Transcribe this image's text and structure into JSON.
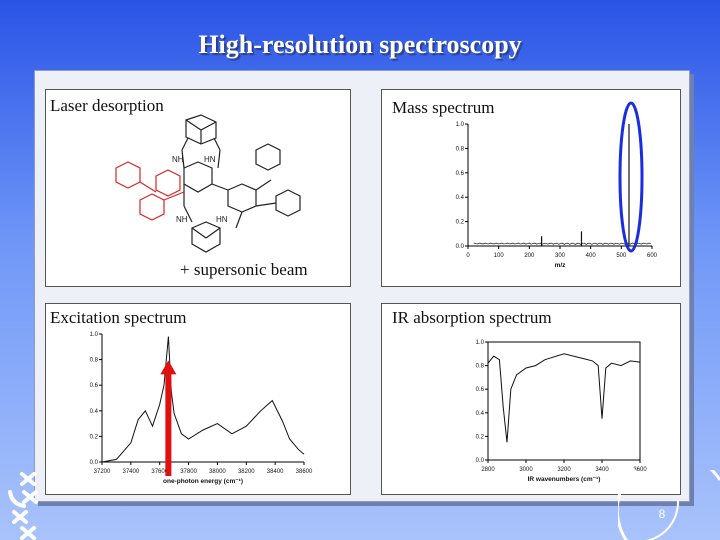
{
  "slide": {
    "title": "High-resolution spectroscopy",
    "page_number": "8"
  },
  "panels": {
    "laser": {
      "label": "Laser desorption",
      "beam_label": "+ supersonic beam"
    },
    "mass": {
      "label": "Mass spectrum"
    },
    "excitation": {
      "label": "Excitation spectrum"
    },
    "ir": {
      "label": "IR absorption spectrum"
    }
  },
  "colors": {
    "highlight_red": "#e01010",
    "highlight_blue": "#1a2de0"
  },
  "chart_data": [
    {
      "type": "line",
      "xlabel": "m/z",
      "ylabel": "",
      "xlim": [
        0,
        600
      ],
      "ylim": [
        0,
        1.0
      ],
      "x_ticks": [
        "0",
        "100",
        "200",
        "300",
        "400",
        "500",
        "600"
      ],
      "y_ticks": [
        "0.0",
        "0.2",
        "0.4",
        "0.6",
        "0.8",
        "1.0"
      ],
      "peaks": [
        {
          "x": 240,
          "y": 0.08
        },
        {
          "x": 370,
          "y": 0.12
        },
        {
          "x": 525,
          "y": 1.0
        }
      ]
    },
    {
      "type": "line",
      "xlabel": "one-photon energy (cm⁻¹)",
      "ylabel": "",
      "xlim": [
        37200,
        38600
      ],
      "ylim": [
        0,
        1.0
      ],
      "x_ticks": [
        "37200",
        "37400",
        "37600",
        "37800",
        "38000",
        "38200",
        "38400",
        "38600"
      ],
      "y_ticks": [
        "0.0",
        "0.2",
        "0.4",
        "0.6",
        "0.8",
        "1.0"
      ],
      "x": [
        37200,
        37300,
        37400,
        37450,
        37500,
        37550,
        37600,
        37630,
        37660,
        37680,
        37700,
        37750,
        37800,
        37900,
        38000,
        38100,
        38200,
        38300,
        38380,
        38450,
        38500,
        38560,
        38600
      ],
      "y": [
        0.0,
        0.02,
        0.15,
        0.33,
        0.4,
        0.28,
        0.45,
        0.6,
        0.98,
        0.55,
        0.38,
        0.22,
        0.18,
        0.25,
        0.3,
        0.22,
        0.28,
        0.4,
        0.48,
        0.32,
        0.18,
        0.1,
        0.06
      ]
    },
    {
      "type": "line",
      "xlabel": "IR wavenumbers (cm⁻¹)",
      "ylabel": "",
      "xlim": [
        2800,
        3600
      ],
      "ylim": [
        0,
        1.0
      ],
      "x_ticks": [
        "2800",
        "3000",
        "3200",
        "3400",
        "3600"
      ],
      "y_ticks": [
        "0.0",
        "0.2",
        "0.4",
        "0.6",
        "0.8",
        "1.0"
      ],
      "x": [
        2800,
        2830,
        2860,
        2880,
        2900,
        2920,
        2950,
        3000,
        3050,
        3100,
        3200,
        3300,
        3350,
        3380,
        3400,
        3420,
        3450,
        3500,
        3550,
        3600
      ],
      "y": [
        0.82,
        0.88,
        0.85,
        0.45,
        0.15,
        0.6,
        0.72,
        0.78,
        0.8,
        0.85,
        0.9,
        0.86,
        0.84,
        0.8,
        0.35,
        0.78,
        0.82,
        0.8,
        0.84,
        0.83
      ]
    }
  ]
}
